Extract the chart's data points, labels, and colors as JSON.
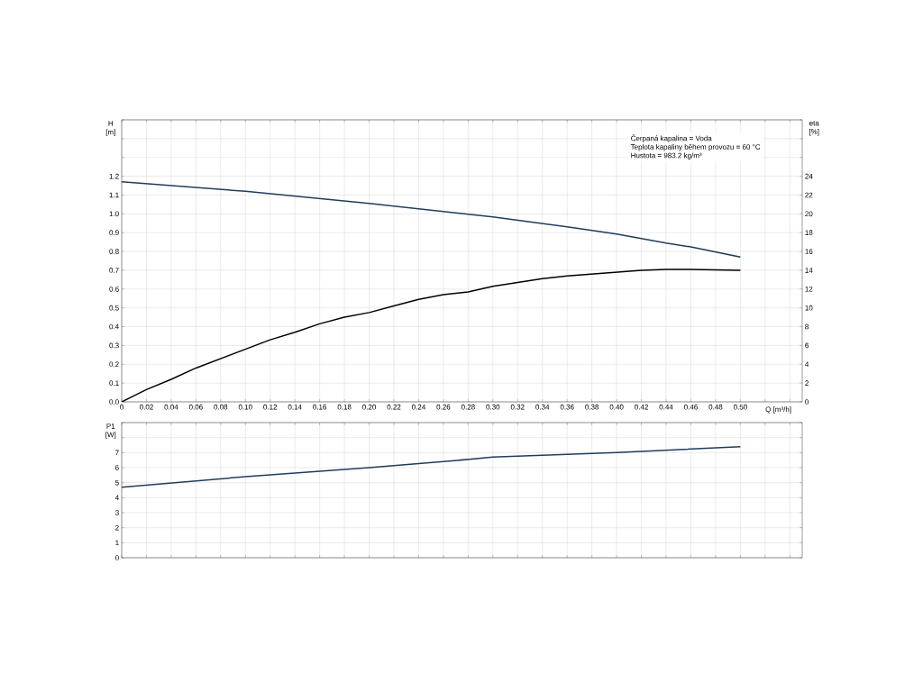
{
  "chart_data": [
    {
      "type": "line",
      "xlabel": "Q [m³/h]",
      "ylabel": "H [m]",
      "y2label": "eta [%]",
      "grid": true,
      "annotations": [
        "Čerpaná kapalina = Voda",
        "Teplota kapaliny během provozu = 60 °C",
        "Hustota = 983.2 kg/m³"
      ],
      "xlim": [
        0,
        0.55
      ],
      "ylim": [
        0,
        1.5
      ],
      "y2lim": [
        0,
        30
      ],
      "xticks": [
        {
          "value": 0,
          "label": "0"
        },
        {
          "value": 0.02,
          "label": "0.02"
        },
        {
          "value": 0.04,
          "label": "0.04"
        },
        {
          "value": 0.06,
          "label": "0.06"
        },
        {
          "value": 0.08,
          "label": "0.08"
        },
        {
          "value": 0.1,
          "label": "0.10"
        },
        {
          "value": 0.12,
          "label": "0.12"
        },
        {
          "value": 0.14,
          "label": "0.14"
        },
        {
          "value": 0.16,
          "label": "0.16"
        },
        {
          "value": 0.18,
          "label": "0.18"
        },
        {
          "value": 0.2,
          "label": "0.20"
        },
        {
          "value": 0.22,
          "label": "0.22"
        },
        {
          "value": 0.24,
          "label": "0.24"
        },
        {
          "value": 0.26,
          "label": "0.26"
        },
        {
          "value": 0.28,
          "label": "0.28"
        },
        {
          "value": 0.3,
          "label": "0.30"
        },
        {
          "value": 0.32,
          "label": "0.32"
        },
        {
          "value": 0.34,
          "label": "0.34"
        },
        {
          "value": 0.36,
          "label": "0.36"
        },
        {
          "value": 0.38,
          "label": "0.38"
        },
        {
          "value": 0.4,
          "label": "0.40"
        },
        {
          "value": 0.42,
          "label": "0.42"
        },
        {
          "value": 0.44,
          "label": "0.44"
        },
        {
          "value": 0.46,
          "label": "0.46"
        },
        {
          "value": 0.48,
          "label": "0.48"
        },
        {
          "value": 0.5,
          "label": "0.50"
        },
        {
          "value": 0.52,
          "label": null
        },
        {
          "value": 0.54,
          "label": null
        }
      ],
      "yticks": [
        {
          "value": 0,
          "label": "0.0"
        },
        {
          "value": 0.1,
          "label": "0.1"
        },
        {
          "value": 0.2,
          "label": "0.2"
        },
        {
          "value": 0.3,
          "label": "0.3"
        },
        {
          "value": 0.4,
          "label": "0.4"
        },
        {
          "value": 0.5,
          "label": "0.5"
        },
        {
          "value": 0.6,
          "label": "0.6"
        },
        {
          "value": 0.7,
          "label": "0.7"
        },
        {
          "value": 0.8,
          "label": "0.8"
        },
        {
          "value": 0.9,
          "label": "0.9"
        },
        {
          "value": 1.0,
          "label": "1.0"
        },
        {
          "value": 1.1,
          "label": "1.1"
        },
        {
          "value": 1.2,
          "label": "1.2"
        },
        {
          "value": 1.3,
          "label": null
        },
        {
          "value": 1.4,
          "label": null
        },
        {
          "value": 1.5,
          "label": null
        }
      ],
      "y2ticks": [
        0,
        2,
        4,
        6,
        8,
        10,
        12,
        14,
        16,
        18,
        20,
        22,
        24,
        {
          "value": 26,
          "label": null
        },
        {
          "value": 28,
          "label": null
        },
        {
          "value": 30,
          "label": null
        }
      ],
      "series": [
        {
          "color": "#1f3d5c",
          "x": [
            0,
            0.1,
            0.2,
            0.3,
            0.36,
            0.4,
            0.44,
            0.46,
            0.5
          ],
          "values": [
            1.17,
            1.12,
            1.055,
            0.984,
            0.931,
            0.893,
            0.845,
            0.824,
            0.77
          ]
        },
        {
          "color": "#000000",
          "axis": "y2",
          "x": [
            0,
            0.02,
            0.04,
            0.06,
            0.08,
            0.1,
            0.12,
            0.14,
            0.16,
            0.18,
            0.2,
            0.22,
            0.24,
            0.26,
            0.28,
            0.3,
            0.34,
            0.36,
            0.4,
            0.42,
            0.44,
            0.46,
            0.5
          ],
          "values": [
            0,
            1.3,
            2.4,
            3.6,
            4.6,
            5.6,
            6.6,
            7.4,
            8.3,
            9.0,
            9.5,
            10.2,
            10.9,
            11.4,
            11.7,
            12.3,
            13.1,
            13.4,
            13.8,
            14.0,
            14.1,
            14.1,
            14.0
          ]
        }
      ]
    },
    {
      "type": "line",
      "ylabel": "P1 [W]",
      "grid": true,
      "tick_labels": "y",
      "xlim": [
        0,
        0.55
      ],
      "ylim": [
        0,
        9
      ],
      "xticks": [
        0,
        0.02,
        0.04,
        0.06,
        0.08,
        0.1,
        0.12,
        0.14,
        0.16,
        0.18,
        0.2,
        0.22,
        0.24,
        0.26,
        0.28,
        0.3,
        0.32,
        0.34,
        0.36,
        0.38,
        0.4,
        0.42,
        0.44,
        0.46,
        0.48,
        0.5,
        0.52,
        0.54
      ],
      "yticks": [
        0,
        1,
        2,
        3,
        4,
        5,
        6,
        7,
        {
          "value": 8,
          "label": null
        },
        {
          "value": 9,
          "label": null
        }
      ],
      "series": [
        {
          "color": "#1f3d5c",
          "x": [
            0,
            0.1,
            0.2,
            0.26,
            0.3,
            0.4,
            0.5
          ],
          "values": [
            4.7,
            5.4,
            6.0,
            6.4,
            6.7,
            7.0,
            7.4
          ]
        }
      ]
    }
  ]
}
